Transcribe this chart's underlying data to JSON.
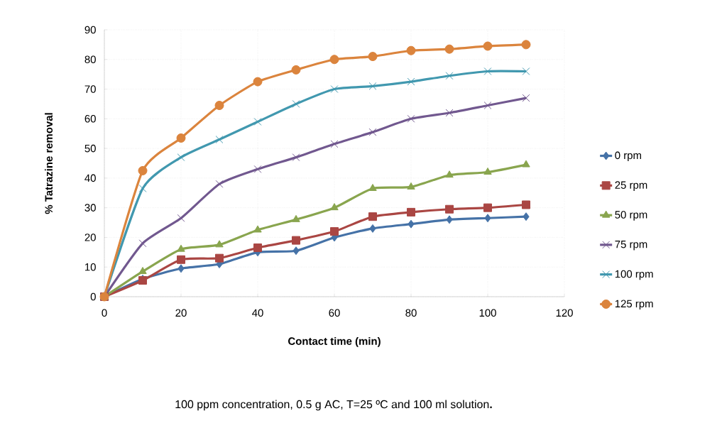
{
  "chart_data": {
    "type": "line",
    "xlabel": "Contact time (min)",
    "ylabel": "% Tatrazine removal",
    "annotations": [
      "100 ppm concentration, 0.5 g AC, T=25 ºC and 100 ml solution**.**"
    ],
    "x": [
      0,
      10,
      20,
      30,
      40,
      50,
      60,
      70,
      80,
      90,
      100,
      110
    ],
    "series": [
      {
        "name": "0 rpm",
        "color": "#4572a7",
        "marker": "diamond",
        "values": [
          0,
          6,
          9.5,
          11,
          15,
          15.5,
          20,
          23,
          24.5,
          26,
          26.5,
          27
        ]
      },
      {
        "name": "25 rpm",
        "color": "#aa4643",
        "marker": "square",
        "values": [
          0,
          5.5,
          12.5,
          13,
          16.5,
          19,
          22,
          27,
          28.5,
          29.5,
          30,
          31
        ]
      },
      {
        "name": "50 rpm",
        "color": "#89a54e",
        "marker": "triangle",
        "values": [
          0,
          8.5,
          16,
          17.5,
          22.5,
          26,
          30,
          36.5,
          37,
          41,
          42,
          44.5
        ]
      },
      {
        "name": "75 rpm",
        "color": "#71588f",
        "marker": "cross",
        "values": [
          0,
          18,
          26.5,
          38,
          43,
          47,
          51.5,
          55.5,
          60,
          62,
          64.5,
          67
        ]
      },
      {
        "name": "100 rpm",
        "color": "#4198af",
        "marker": "cross",
        "values": [
          0,
          36.5,
          47,
          53,
          59,
          65,
          70,
          71,
          72.5,
          74.5,
          76,
          76
        ]
      },
      {
        "name": "125 rpm",
        "color": "#db843d",
        "marker": "circle",
        "values": [
          0,
          42.5,
          53.5,
          64.5,
          72.5,
          76.5,
          80,
          81,
          83,
          83.5,
          84.5,
          85
        ]
      }
    ],
    "xlim": [
      0,
      120
    ],
    "ylim": [
      0,
      90
    ],
    "xticks": [
      0,
      20,
      40,
      60,
      80,
      100,
      120
    ],
    "yticks": [
      0,
      10,
      20,
      30,
      40,
      50,
      60,
      70,
      80,
      90
    ],
    "grid": true,
    "legend": "right"
  }
}
